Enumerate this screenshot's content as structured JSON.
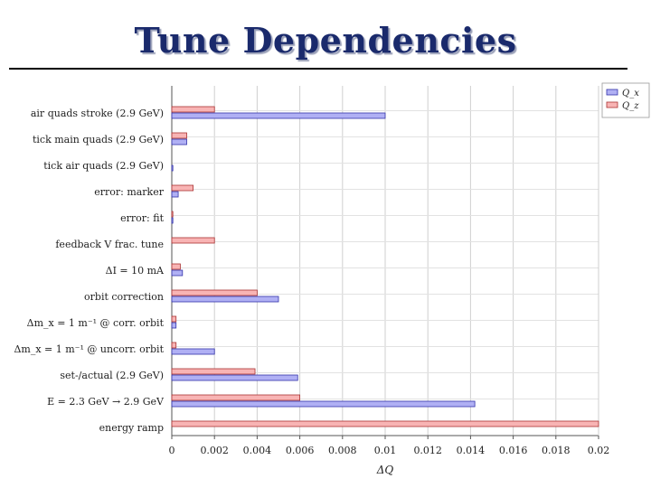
{
  "slide": {
    "title": "Tune Dependencies"
  },
  "chart_data": {
    "type": "bar",
    "orientation": "horizontal",
    "categories": [
      "air quads stroke (2.9 GeV)",
      "tick main quads (2.9 GeV)",
      "tick air quads (2.9 GeV)",
      "error: marker",
      "error: fit",
      "feedback V frac. tune",
      "ΔI = 10 mA",
      "orbit correction",
      "Δm_x = 1 m⁻¹ @ corr. orbit",
      "Δm_x = 1 m⁻¹ @ uncorr. orbit",
      "set-/actual (2.9 GeV)",
      "E = 2.3 GeV → 2.9 GeV",
      "energy ramp"
    ],
    "series": [
      {
        "name": "Q_x",
        "color": "#b0b0f4",
        "edge": "#3333aa",
        "values": [
          0.01,
          0.0007,
          5e-05,
          0.0003,
          5e-05,
          0,
          0.0005,
          0.005,
          0.0002,
          0.002,
          0.0059,
          0.0142,
          0
        ]
      },
      {
        "name": "Q_z",
        "color": "#f8b4b4",
        "edge": "#aa3333",
        "values": [
          0.002,
          0.0007,
          0,
          0.001,
          5e-05,
          0.002,
          0.0004,
          0.004,
          0.0002,
          0.0002,
          0.0039,
          0.006,
          0.02
        ]
      }
    ],
    "xlabel": "ΔQ",
    "xlim": [
      0,
      0.02
    ],
    "xticks": [
      "0",
      "0.002",
      "0.004",
      "0.006",
      "0.008",
      "0.01",
      "0.012",
      "0.014",
      "0.016",
      "0.018",
      "0.02"
    ],
    "grid": true,
    "legend": "top-right"
  }
}
